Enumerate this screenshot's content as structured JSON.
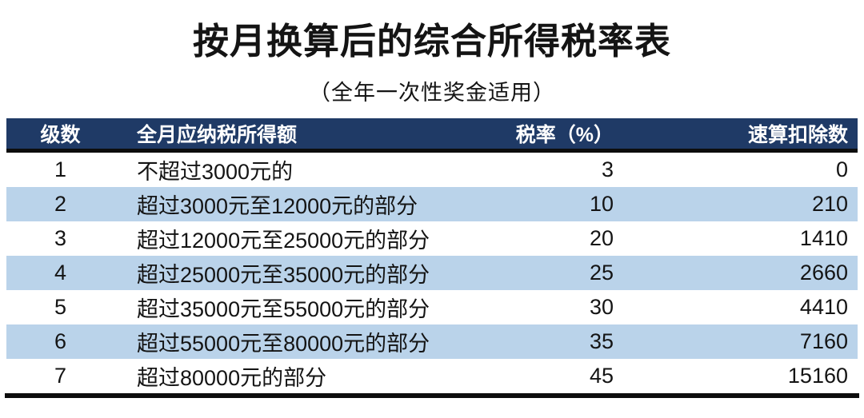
{
  "title": "按月换算后的综合所得税率表",
  "subtitle": "（全年一次性奖金适用）",
  "table": {
    "headers": {
      "level": "级数",
      "income": "全月应纳税所得额",
      "rate": "税率（%）",
      "deduction": "速算扣除数"
    },
    "rows": [
      {
        "level": "1",
        "income": "不超过3000元的",
        "rate": "3",
        "deduction": "0"
      },
      {
        "level": "2",
        "income": "超过3000元至12000元的部分",
        "rate": "10",
        "deduction": "210"
      },
      {
        "level": "3",
        "income": "超过12000元至25000元的部分",
        "rate": "20",
        "deduction": "1410"
      },
      {
        "level": "4",
        "income": "超过25000元至35000元的部分",
        "rate": "25",
        "deduction": "2660"
      },
      {
        "level": "5",
        "income": "超过35000元至55000元的部分",
        "rate": "30",
        "deduction": "4410"
      },
      {
        "level": "6",
        "income": "超过55000元至80000元的部分",
        "rate": "35",
        "deduction": "7160"
      },
      {
        "level": "7",
        "income": "超过80000元的部分",
        "rate": "45",
        "deduction": "15160"
      }
    ]
  },
  "colors": {
    "header_bg": "#1f3a66",
    "header_text": "#ffffff",
    "row_bg": "#ffffff",
    "row_alt_bg": "#bad3ea",
    "rule_line": "#0d0d0d",
    "body_text": "#141414"
  }
}
